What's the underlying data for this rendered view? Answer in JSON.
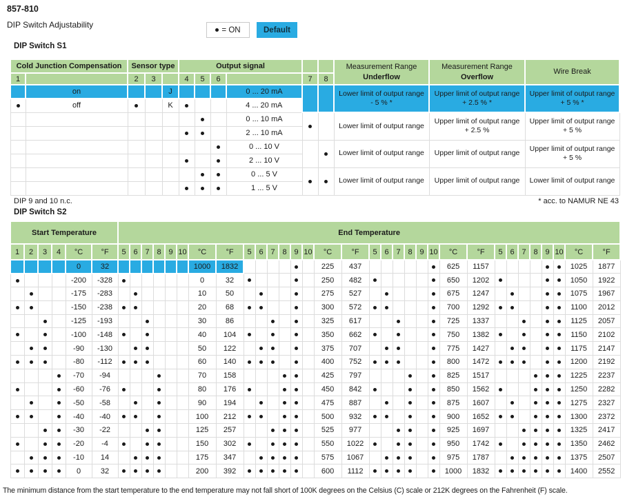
{
  "page": {
    "product_id": "857-810",
    "subtitle": "DIP Switch Adjustability",
    "legend_on_label": "= ON",
    "legend_default": "Default",
    "bottom_note": "The minimum distance from the start temperature to the end temperature may not fall short of 100K degrees on the Celsius (C) scale or 212K degrees on the Fahrenheit (F) scale."
  },
  "colors": {
    "header_green": "#b4d79c",
    "highlight_cyan": "#29abe2",
    "grid": "#dcdcdc"
  },
  "s1": {
    "title": "DIP Switch S1",
    "group_headers": [
      "Cold Junction Compensation",
      "Sensor type",
      "Output signal"
    ],
    "switch_numbers": [
      "1",
      "2",
      "3",
      "4",
      "5",
      "6",
      "7",
      "8"
    ],
    "range_headers": [
      {
        "top": "Measurement Range",
        "bottom": "Underflow"
      },
      {
        "top": "Measurement Range",
        "bottom": "Overflow"
      },
      {
        "top": "Wire Break",
        "bottom": ""
      }
    ],
    "rows": [
      {
        "sw": [],
        "cjc": "on",
        "sensor": "J",
        "output": "0 ... 20 mA",
        "highlight": true
      },
      {
        "sw": [
          1,
          2,
          4
        ],
        "cjc": "off",
        "sensor": "K",
        "output": "4 ... 20 mA",
        "highlight": false
      },
      {
        "sw": [
          5
        ],
        "cjc": "",
        "sensor": "",
        "output": "0 ... 10 mA",
        "highlight": false
      },
      {
        "sw": [
          4,
          5
        ],
        "cjc": "",
        "sensor": "",
        "output": "2 ... 10 mA",
        "highlight": false
      },
      {
        "sw": [
          6
        ],
        "cjc": "",
        "sensor": "",
        "output": "0 ... 10 V",
        "highlight": false
      },
      {
        "sw": [
          4,
          6
        ],
        "cjc": "",
        "sensor": "",
        "output": "2 ... 10 V",
        "highlight": false
      },
      {
        "sw": [
          5,
          6
        ],
        "cjc": "",
        "sensor": "",
        "output": "0 ... 5 V",
        "highlight": false
      },
      {
        "sw": [
          4,
          5,
          6
        ],
        "cjc": "",
        "sensor": "",
        "output": "1 ... 5 V",
        "highlight": false
      }
    ],
    "range_pairs": [
      {
        "sw7": false,
        "sw8": false,
        "underflow": "Lower limit of output range - 5 % *",
        "overflow": "Upper limit of output range + 2.5 % *",
        "wire_break": "Upper limit of output range + 5 % *",
        "highlight": true
      },
      {
        "sw7": true,
        "sw8": false,
        "underflow": "Lower limit of output range",
        "overflow": "Upper limit of output range + 2.5 %",
        "wire_break": "Upper limit of output range + 5 %",
        "highlight": false
      },
      {
        "sw7": false,
        "sw8": true,
        "underflow": "Lower limit of output range",
        "overflow": "Upper limit of output range",
        "wire_break": "Upper limit of output range + 5 %",
        "highlight": false
      },
      {
        "sw7": true,
        "sw8": true,
        "underflow": "Lower limit of output range",
        "overflow": "Upper limit of output range",
        "wire_break": "Lower limit of output range",
        "highlight": false
      }
    ],
    "footnote_left": "DIP 9 and 10 n.c.",
    "footnote_right": "* acc. to NAMUR NE 43"
  },
  "s2": {
    "title": "DIP Switch S2",
    "start_header": "Start Temperature",
    "end_header": "End Temperature",
    "start_switch_numbers": [
      "1",
      "2",
      "3",
      "4"
    ],
    "end_switch_numbers": [
      "5",
      "6",
      "7",
      "8",
      "9",
      "10"
    ],
    "unit_c": "°C",
    "unit_f": "°F",
    "start_rows": [
      {
        "sw": [],
        "c": "0",
        "f": "32",
        "highlight": true
      },
      {
        "sw": [
          1
        ],
        "c": "-200",
        "f": "-328",
        "highlight": false
      },
      {
        "sw": [
          2
        ],
        "c": "-175",
        "f": "-283",
        "highlight": false
      },
      {
        "sw": [
          1,
          2
        ],
        "c": "-150",
        "f": "-238",
        "highlight": false
      },
      {
        "sw": [
          3
        ],
        "c": "-125",
        "f": "-193",
        "highlight": false
      },
      {
        "sw": [
          1,
          3
        ],
        "c": "-100",
        "f": "-148",
        "highlight": false
      },
      {
        "sw": [
          2,
          3
        ],
        "c": "-90",
        "f": "-130",
        "highlight": false
      },
      {
        "sw": [
          1,
          2,
          3
        ],
        "c": "-80",
        "f": "-112",
        "highlight": false
      },
      {
        "sw": [
          4
        ],
        "c": "-70",
        "f": "-94",
        "highlight": false
      },
      {
        "sw": [
          1,
          4
        ],
        "c": "-60",
        "f": "-76",
        "highlight": false
      },
      {
        "sw": [
          2,
          4
        ],
        "c": "-50",
        "f": "-58",
        "highlight": false
      },
      {
        "sw": [
          1,
          2,
          4
        ],
        "c": "-40",
        "f": "-40",
        "highlight": false
      },
      {
        "sw": [
          3,
          4
        ],
        "c": "-30",
        "f": "-22",
        "highlight": false
      },
      {
        "sw": [
          1,
          3,
          4
        ],
        "c": "-20",
        "f": "-4",
        "highlight": false
      },
      {
        "sw": [
          2,
          3,
          4
        ],
        "c": "-10",
        "f": "14",
        "highlight": false
      },
      {
        "sw": [
          1,
          2,
          3,
          4
        ],
        "c": "0",
        "f": "32",
        "highlight": false
      }
    ],
    "end_groups": [
      {
        "rows": [
          {
            "sw": [],
            "c": "1000",
            "f": "1832",
            "highlight": true
          },
          {
            "sw": [
              5
            ],
            "c": "0",
            "f": "32",
            "highlight": false
          },
          {
            "sw": [
              6
            ],
            "c": "10",
            "f": "50",
            "highlight": false
          },
          {
            "sw": [
              5,
              6
            ],
            "c": "20",
            "f": "68",
            "highlight": false
          },
          {
            "sw": [
              7
            ],
            "c": "30",
            "f": "86",
            "highlight": false
          },
          {
            "sw": [
              5,
              7
            ],
            "c": "40",
            "f": "104",
            "highlight": false
          },
          {
            "sw": [
              6,
              7
            ],
            "c": "50",
            "f": "122",
            "highlight": false
          },
          {
            "sw": [
              5,
              6,
              7
            ],
            "c": "60",
            "f": "140",
            "highlight": false
          },
          {
            "sw": [
              8
            ],
            "c": "70",
            "f": "158",
            "highlight": false
          },
          {
            "sw": [
              5,
              8
            ],
            "c": "80",
            "f": "176",
            "highlight": false
          },
          {
            "sw": [
              6,
              8
            ],
            "c": "90",
            "f": "194",
            "highlight": false
          },
          {
            "sw": [
              5,
              6,
              8
            ],
            "c": "100",
            "f": "212",
            "highlight": false
          },
          {
            "sw": [
              7,
              8
            ],
            "c": "125",
            "f": "257",
            "highlight": false
          },
          {
            "sw": [
              5,
              7,
              8
            ],
            "c": "150",
            "f": "302",
            "highlight": false
          },
          {
            "sw": [
              6,
              7,
              8
            ],
            "c": "175",
            "f": "347",
            "highlight": false
          },
          {
            "sw": [
              5,
              6,
              7,
              8
            ],
            "c": "200",
            "f": "392",
            "highlight": false
          }
        ]
      },
      {
        "rows": [
          {
            "sw": [
              9
            ],
            "c": "225",
            "f": "437",
            "highlight": false
          },
          {
            "sw": [
              5,
              9
            ],
            "c": "250",
            "f": "482",
            "highlight": false
          },
          {
            "sw": [
              6,
              9
            ],
            "c": "275",
            "f": "527",
            "highlight": false
          },
          {
            "sw": [
              5,
              6,
              9
            ],
            "c": "300",
            "f": "572",
            "highlight": false
          },
          {
            "sw": [
              7,
              9
            ],
            "c": "325",
            "f": "617",
            "highlight": false
          },
          {
            "sw": [
              5,
              7,
              9
            ],
            "c": "350",
            "f": "662",
            "highlight": false
          },
          {
            "sw": [
              6,
              7,
              9
            ],
            "c": "375",
            "f": "707",
            "highlight": false
          },
          {
            "sw": [
              5,
              6,
              7,
              9
            ],
            "c": "400",
            "f": "752",
            "highlight": false
          },
          {
            "sw": [
              8,
              9
            ],
            "c": "425",
            "f": "797",
            "highlight": false
          },
          {
            "sw": [
              5,
              8,
              9
            ],
            "c": "450",
            "f": "842",
            "highlight": false
          },
          {
            "sw": [
              6,
              8,
              9
            ],
            "c": "475",
            "f": "887",
            "highlight": false
          },
          {
            "sw": [
              5,
              6,
              8,
              9
            ],
            "c": "500",
            "f": "932",
            "highlight": false
          },
          {
            "sw": [
              7,
              8,
              9
            ],
            "c": "525",
            "f": "977",
            "highlight": false
          },
          {
            "sw": [
              5,
              7,
              8,
              9
            ],
            "c": "550",
            "f": "1022",
            "highlight": false
          },
          {
            "sw": [
              6,
              7,
              8,
              9
            ],
            "c": "575",
            "f": "1067",
            "highlight": false
          },
          {
            "sw": [
              5,
              6,
              7,
              8,
              9
            ],
            "c": "600",
            "f": "1112",
            "highlight": false
          }
        ]
      },
      {
        "rows": [
          {
            "sw": [
              10
            ],
            "c": "625",
            "f": "1157",
            "highlight": false
          },
          {
            "sw": [
              5,
              10
            ],
            "c": "650",
            "f": "1202",
            "highlight": false
          },
          {
            "sw": [
              6,
              10
            ],
            "c": "675",
            "f": "1247",
            "highlight": false
          },
          {
            "sw": [
              5,
              6,
              10
            ],
            "c": "700",
            "f": "1292",
            "highlight": false
          },
          {
            "sw": [
              7,
              10
            ],
            "c": "725",
            "f": "1337",
            "highlight": false
          },
          {
            "sw": [
              5,
              7,
              10
            ],
            "c": "750",
            "f": "1382",
            "highlight": false
          },
          {
            "sw": [
              6,
              7,
              10
            ],
            "c": "775",
            "f": "1427",
            "highlight": false
          },
          {
            "sw": [
              5,
              6,
              7,
              10
            ],
            "c": "800",
            "f": "1472",
            "highlight": false
          },
          {
            "sw": [
              8,
              10
            ],
            "c": "825",
            "f": "1517",
            "highlight": false
          },
          {
            "sw": [
              5,
              8,
              10
            ],
            "c": "850",
            "f": "1562",
            "highlight": false
          },
          {
            "sw": [
              6,
              8,
              10
            ],
            "c": "875",
            "f": "1607",
            "highlight": false
          },
          {
            "sw": [
              5,
              6,
              8,
              10
            ],
            "c": "900",
            "f": "1652",
            "highlight": false
          },
          {
            "sw": [
              7,
              8,
              10
            ],
            "c": "925",
            "f": "1697",
            "highlight": false
          },
          {
            "sw": [
              5,
              7,
              8,
              10
            ],
            "c": "950",
            "f": "1742",
            "highlight": false
          },
          {
            "sw": [
              6,
              7,
              8,
              10
            ],
            "c": "975",
            "f": "1787",
            "highlight": false
          },
          {
            "sw": [
              5,
              6,
              7,
              8,
              10
            ],
            "c": "1000",
            "f": "1832",
            "highlight": false
          }
        ]
      },
      {
        "rows": [
          {
            "sw": [
              9,
              10
            ],
            "c": "1025",
            "f": "1877",
            "highlight": false
          },
          {
            "sw": [
              5,
              9,
              10
            ],
            "c": "1050",
            "f": "1922",
            "highlight": false
          },
          {
            "sw": [
              6,
              9,
              10
            ],
            "c": "1075",
            "f": "1967",
            "highlight": false
          },
          {
            "sw": [
              5,
              6,
              9,
              10
            ],
            "c": "1100",
            "f": "2012",
            "highlight": false
          },
          {
            "sw": [
              7,
              9,
              10
            ],
            "c": "1125",
            "f": "2057",
            "highlight": false
          },
          {
            "sw": [
              5,
              7,
              9,
              10
            ],
            "c": "1150",
            "f": "2102",
            "highlight": false
          },
          {
            "sw": [
              6,
              7,
              9,
              10
            ],
            "c": "1175",
            "f": "2147",
            "highlight": false
          },
          {
            "sw": [
              5,
              6,
              7,
              9,
              10
            ],
            "c": "1200",
            "f": "2192",
            "highlight": false
          },
          {
            "sw": [
              8,
              9,
              10
            ],
            "c": "1225",
            "f": "2237",
            "highlight": false
          },
          {
            "sw": [
              5,
              8,
              9,
              10
            ],
            "c": "1250",
            "f": "2282",
            "highlight": false
          },
          {
            "sw": [
              6,
              8,
              9,
              10
            ],
            "c": "1275",
            "f": "2327",
            "highlight": false
          },
          {
            "sw": [
              5,
              6,
              8,
              9,
              10
            ],
            "c": "1300",
            "f": "2372",
            "highlight": false
          },
          {
            "sw": [
              7,
              8,
              9,
              10
            ],
            "c": "1325",
            "f": "2417",
            "highlight": false
          },
          {
            "sw": [
              5,
              7,
              8,
              9,
              10
            ],
            "c": "1350",
            "f": "2462",
            "highlight": false
          },
          {
            "sw": [
              6,
              7,
              8,
              9,
              10
            ],
            "c": "1375",
            "f": "2507",
            "highlight": false
          },
          {
            "sw": [
              5,
              6,
              7,
              8,
              9,
              10
            ],
            "c": "1400",
            "f": "2552",
            "highlight": false
          }
        ]
      }
    ]
  }
}
